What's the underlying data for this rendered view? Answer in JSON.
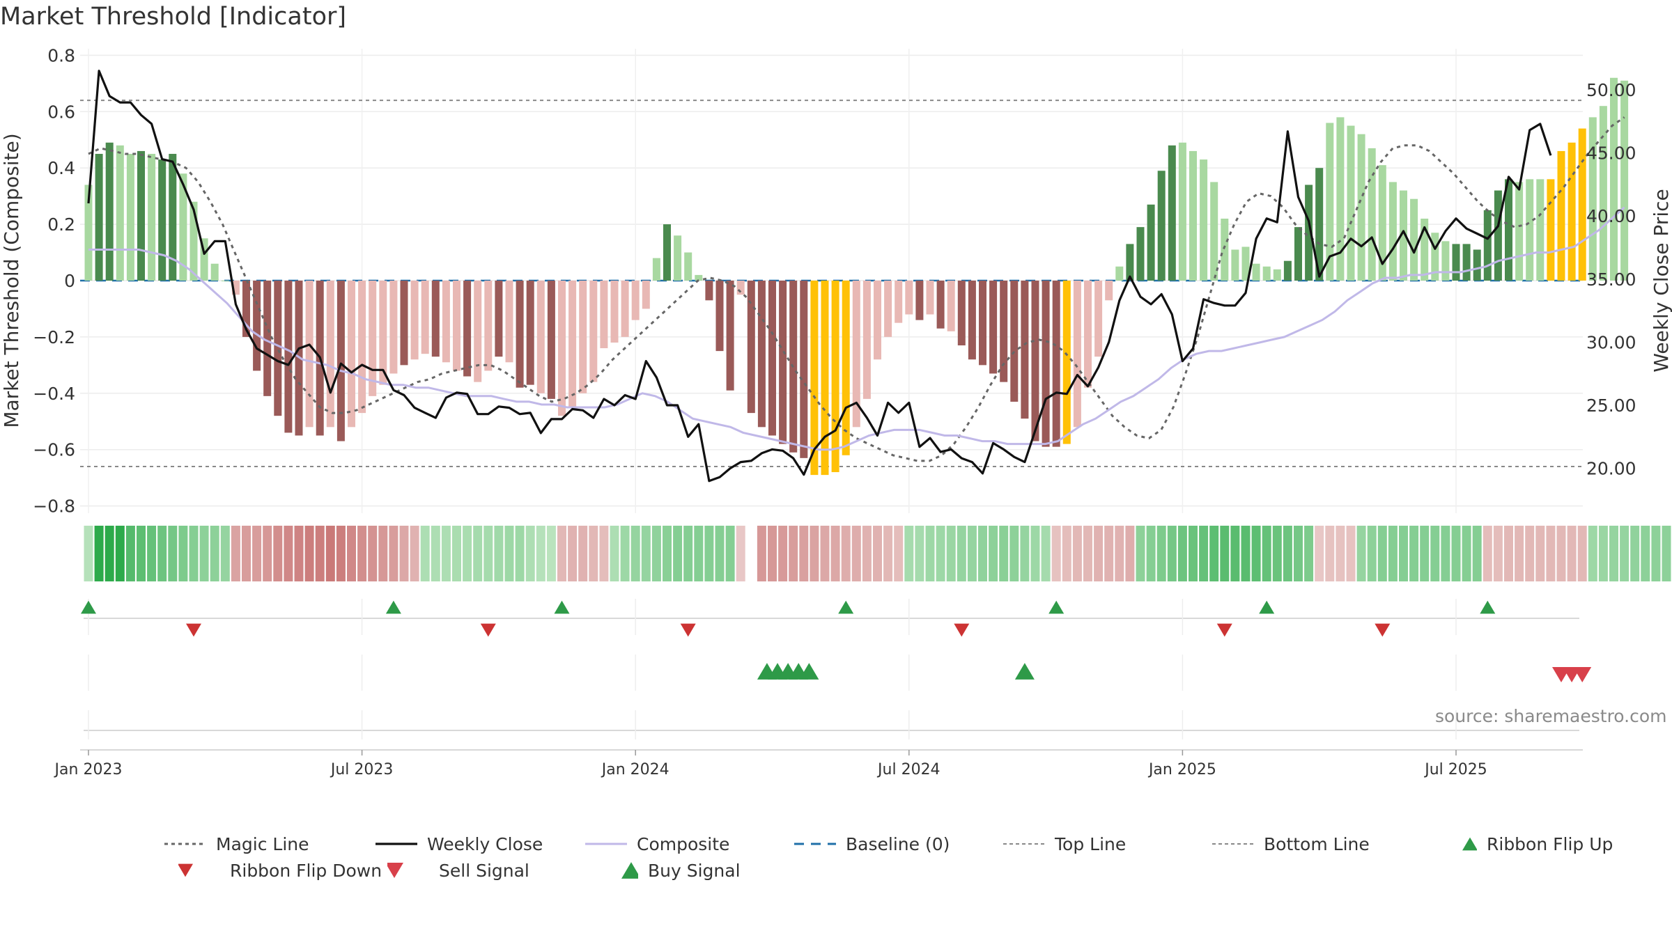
{
  "title": "Market Threshold [Indicator]",
  "source": "source: sharemaestro.com",
  "colors": {
    "pos_strong": "#4a8a4e",
    "pos_light": "#a8d8a0",
    "neg_strong": "#9a5a58",
    "neg_light": "#e8b8b4",
    "extreme": "#ffc107",
    "close": "#111111",
    "composite": "#c0b8e8",
    "magic": "#666666",
    "baseline": "#1f6fa8",
    "buy": "#2e9a48",
    "sell": "#d8404a"
  },
  "legend": [
    {
      "key": "magic",
      "label": "Magic Line"
    },
    {
      "key": "close",
      "label": "Weekly Close"
    },
    {
      "key": "composite",
      "label": "Composite"
    },
    {
      "key": "baseline",
      "label": "Baseline (0)"
    },
    {
      "key": "top",
      "label": "Top Line"
    },
    {
      "key": "bottom",
      "label": "Bottom Line"
    },
    {
      "key": "flipup",
      "label": "Ribbon Flip Up"
    },
    {
      "key": "flipdown",
      "label": "Ribbon Flip Down"
    },
    {
      "key": "sell",
      "label": "Sell Signal"
    },
    {
      "key": "buy",
      "label": "Buy Signal"
    }
  ],
  "chart_data": {
    "type": "bar",
    "title": "Market Threshold [Indicator]",
    "ylabel": "Market Threshold (Composite)",
    "y2label": "Weekly Close Price",
    "ylim": [
      -0.8,
      0.8
    ],
    "y2lim": [
      17.0,
      52.7
    ],
    "yticks": [
      "0.8",
      "0.6",
      "0.4",
      "0.2",
      "0",
      "−0.2",
      "−0.4",
      "−0.6",
      "−0.8"
    ],
    "yticks_values": [
      0.8,
      0.6,
      0.4,
      0.2,
      0,
      -0.2,
      -0.4,
      -0.6,
      -0.8
    ],
    "y2ticks": [
      "50.00",
      "45.00",
      "40.00",
      "35.00",
      "30.00",
      "25.00",
      "20.00"
    ],
    "y2ticks_values": [
      50,
      45,
      40,
      35,
      30,
      25,
      20
    ],
    "xticks": [
      "Jan 2023",
      "Jul 2023",
      "Jan 2024",
      "Jul 2024",
      "Jan 2025",
      "Jul 2025"
    ],
    "xticks_week": [
      0,
      26,
      52,
      78,
      104,
      130
    ],
    "top_line": 0.64,
    "bottom_line": -0.66,
    "baseline": 0,
    "composite_bars": [
      0.34,
      0.45,
      0.49,
      0.48,
      0.45,
      0.46,
      0.45,
      0.43,
      0.45,
      0.38,
      0.28,
      0.15,
      0.06,
      0.0,
      -0.05,
      -0.2,
      -0.32,
      -0.41,
      -0.48,
      -0.54,
      -0.55,
      -0.52,
      -0.55,
      -0.52,
      -0.57,
      -0.52,
      -0.47,
      -0.41,
      -0.37,
      -0.33,
      -0.3,
      -0.28,
      -0.26,
      -0.27,
      -0.29,
      -0.32,
      -0.34,
      -0.36,
      -0.32,
      -0.27,
      -0.29,
      -0.38,
      -0.37,
      -0.4,
      -0.42,
      -0.48,
      -0.45,
      -0.4,
      -0.36,
      -0.24,
      -0.22,
      -0.2,
      -0.14,
      -0.1,
      0.08,
      0.2,
      0.16,
      0.1,
      0.02,
      -0.07,
      -0.25,
      -0.39,
      -0.05,
      -0.47,
      -0.52,
      -0.55,
      -0.58,
      -0.61,
      -0.63,
      -0.69,
      -0.69,
      -0.68,
      -0.62,
      -0.52,
      -0.42,
      -0.28,
      -0.2,
      -0.15,
      -0.12,
      -0.14,
      -0.12,
      -0.17,
      -0.18,
      -0.23,
      -0.28,
      -0.3,
      -0.33,
      -0.36,
      -0.43,
      -0.49,
      -0.57,
      -0.59,
      -0.59,
      -0.58,
      -0.52,
      -0.38,
      -0.27,
      -0.07,
      0.05,
      0.13,
      0.19,
      0.27,
      0.39,
      0.48,
      0.49,
      0.46,
      0.43,
      0.35,
      0.22,
      0.11,
      0.12,
      0.06,
      0.05,
      0.04,
      0.07,
      0.19,
      0.34,
      0.4,
      0.56,
      0.58,
      0.55,
      0.52,
      0.47,
      0.41,
      0.35,
      0.32,
      0.29,
      0.22,
      0.17,
      0.14,
      0.13,
      0.13,
      0.11,
      0.25,
      0.32,
      0.36,
      0.35,
      0.36,
      0.36,
      0.36,
      0.46,
      0.49,
      0.54,
      0.58,
      0.62,
      0.72,
      0.71
    ],
    "bar_style": [
      "L",
      "S",
      "S",
      "L",
      "L",
      "S",
      "L",
      "S",
      "S",
      "L",
      "L",
      "L",
      "L",
      "L",
      "L",
      "S",
      "S",
      "S",
      "S",
      "S",
      "S",
      "L",
      "S",
      "L",
      "S",
      "L",
      "L",
      "L",
      "L",
      "L",
      "S",
      "L",
      "L",
      "S",
      "L",
      "L",
      "S",
      "L",
      "L",
      "S",
      "L",
      "S",
      "S",
      "L",
      "S",
      "L",
      "L",
      "L",
      "L",
      "L",
      "L",
      "L",
      "L",
      "L",
      "L",
      "S",
      "L",
      "L",
      "L",
      "S",
      "S",
      "S",
      "L",
      "S",
      "S",
      "S",
      "S",
      "S",
      "S",
      "E",
      "E",
      "E",
      "E",
      "L",
      "L",
      "L",
      "L",
      "L",
      "L",
      "S",
      "L",
      "S",
      "L",
      "S",
      "S",
      "S",
      "S",
      "S",
      "S",
      "S",
      "S",
      "S",
      "S",
      "E",
      "L",
      "L",
      "L",
      "L",
      "L",
      "S",
      "S",
      "S",
      "S",
      "S",
      "L",
      "L",
      "L",
      "L",
      "L",
      "L",
      "L",
      "L",
      "L",
      "L",
      "S",
      "S",
      "S",
      "S",
      "L",
      "L",
      "L",
      "L",
      "L",
      "L",
      "L",
      "L",
      "L",
      "L",
      "L",
      "L",
      "S",
      "S",
      "S",
      "S",
      "S",
      "S",
      "L",
      "L",
      "L",
      "E",
      "E",
      "E",
      "E"
    ],
    "magic_line": [
      0.45,
      0.47,
      0.46,
      0.45,
      0.45,
      0.44,
      0.43,
      0.42,
      0.4,
      0.35,
      0.28,
      0.2,
      0.1,
      0.0,
      -0.1,
      -0.2,
      -0.28,
      -0.35,
      -0.4,
      -0.45,
      -0.47,
      -0.47,
      -0.46,
      -0.44,
      -0.42,
      -0.4,
      -0.38,
      -0.36,
      -0.35,
      -0.33,
      -0.32,
      -0.31,
      -0.3,
      -0.3,
      -0.32,
      -0.35,
      -0.38,
      -0.41,
      -0.43,
      -0.42,
      -0.4,
      -0.37,
      -0.33,
      -0.28,
      -0.24,
      -0.2,
      -0.16,
      -0.12,
      -0.08,
      -0.04,
      0.0,
      0.01,
      0.0,
      -0.02,
      -0.06,
      -0.12,
      -0.18,
      -0.25,
      -0.32,
      -0.38,
      -0.44,
      -0.49,
      -0.53,
      -0.56,
      -0.58,
      -0.6,
      -0.62,
      -0.63,
      -0.64,
      -0.64,
      -0.62,
      -0.58,
      -0.52,
      -0.45,
      -0.37,
      -0.3,
      -0.25,
      -0.22,
      -0.21,
      -0.22,
      -0.25,
      -0.3,
      -0.36,
      -0.42,
      -0.48,
      -0.52,
      -0.55,
      -0.56,
      -0.53,
      -0.45,
      -0.33,
      -0.2,
      -0.05,
      0.1,
      0.2,
      0.28,
      0.31,
      0.3,
      0.26,
      0.2,
      0.16,
      0.13,
      0.12,
      0.15,
      0.25,
      0.35,
      0.42,
      0.47,
      0.48,
      0.48,
      0.46,
      0.42,
      0.38,
      0.33,
      0.28,
      0.24,
      0.21,
      0.19,
      0.2,
      0.23,
      0.28,
      0.33,
      0.39,
      0.45,
      0.5,
      0.55,
      0.58
    ],
    "composite_line": [
      0.11,
      0.11,
      0.11,
      0.11,
      0.11,
      0.1,
      0.09,
      0.07,
      0.04,
      0.0,
      -0.04,
      -0.08,
      -0.13,
      -0.18,
      -0.21,
      -0.23,
      -0.25,
      -0.28,
      -0.29,
      -0.3,
      -0.32,
      -0.33,
      -0.35,
      -0.36,
      -0.37,
      -0.37,
      -0.38,
      -0.38,
      -0.39,
      -0.4,
      -0.41,
      -0.41,
      -0.41,
      -0.42,
      -0.43,
      -0.43,
      -0.44,
      -0.44,
      -0.45,
      -0.45,
      -0.45,
      -0.45,
      -0.44,
      -0.42,
      -0.4,
      -0.41,
      -0.43,
      -0.46,
      -0.49,
      -0.5,
      -0.51,
      -0.52,
      -0.54,
      -0.55,
      -0.56,
      -0.57,
      -0.58,
      -0.59,
      -0.6,
      -0.6,
      -0.59,
      -0.57,
      -0.55,
      -0.54,
      -0.53,
      -0.53,
      -0.53,
      -0.54,
      -0.55,
      -0.55,
      -0.56,
      -0.57,
      -0.57,
      -0.58,
      -0.58,
      -0.58,
      -0.58,
      -0.57,
      -0.54,
      -0.51,
      -0.49,
      -0.46,
      -0.43,
      -0.41,
      -0.38,
      -0.35,
      -0.31,
      -0.28,
      -0.26,
      -0.25,
      -0.25,
      -0.24,
      -0.23,
      -0.22,
      -0.21,
      -0.2,
      -0.18,
      -0.16,
      -0.14,
      -0.11,
      -0.07,
      -0.04,
      -0.01,
      0.01,
      0.01,
      0.02,
      0.02,
      0.03,
      0.03,
      0.03,
      0.04,
      0.05,
      0.07,
      0.08,
      0.09,
      0.1,
      0.1,
      0.11,
      0.12,
      0.15,
      0.18,
      0.22,
      0.26
    ],
    "weekly_close": [
      41,
      51.5,
      49.5,
      49,
      49,
      48,
      47.3,
      44.5,
      44.3,
      42.5,
      40.5,
      37,
      38,
      38,
      33,
      31,
      29.5,
      29,
      28.5,
      28.2,
      29.5,
      29.8,
      28.8,
      26,
      28.3,
      27.6,
      28.2,
      27.8,
      27.8,
      26.2,
      25.8,
      24.8,
      24.4,
      24,
      25.6,
      26,
      25.9,
      24.3,
      24.3,
      24.9,
      24.8,
      24.3,
      24.4,
      22.8,
      23.9,
      23.9,
      24.7,
      24.6,
      24,
      25.5,
      25,
      25.8,
      25.5,
      28.5,
      27.2,
      25,
      25,
      22.5,
      23.5,
      19,
      19.3,
      20,
      20.5,
      20.6,
      21.2,
      21.5,
      21.4,
      20.8,
      19.5,
      21.5,
      22.5,
      23,
      24.8,
      25.2,
      24,
      22.6,
      25.2,
      24.4,
      25.2,
      21.7,
      22.4,
      21.3,
      21.5,
      20.8,
      20.5,
      19.6,
      22,
      21.5,
      20.9,
      20.5,
      23,
      25.5,
      26,
      25.9,
      27.4,
      26.5,
      28,
      30,
      33.3,
      35.2,
      33.6,
      33,
      33.8,
      32.2,
      28.5,
      29.5,
      33.4,
      33.1,
      32.9,
      32.9,
      33.9,
      38.2,
      39.8,
      39.5,
      46.7,
      41.5,
      39.6,
      35.2,
      36.8,
      37.1,
      38.2,
      37.6,
      38.3,
      36.2,
      37.4,
      38.8,
      37.1,
      39.1,
      37.4,
      38.8,
      39.8,
      39,
      38.6,
      38.2,
      39.2,
      43.1,
      42.1,
      46.8,
      47.3,
      44.8
    ],
    "ribbon": [
      0.15,
      1,
      1,
      1,
      0.75,
      0.7,
      0.65,
      0.6,
      0.55,
      0.5,
      0.45,
      0.4,
      0.4,
      0.35,
      -0.5,
      -0.55,
      -0.55,
      -0.6,
      -0.7,
      -0.75,
      -0.8,
      -0.85,
      -0.85,
      -0.9,
      -0.85,
      -0.75,
      -0.7,
      -0.65,
      -0.6,
      -0.55,
      -0.45,
      -0.35,
      0.2,
      0.2,
      0.2,
      0.22,
      0.22,
      0.25,
      0.25,
      0.28,
      0.3,
      0.3,
      0.2,
      0.15,
      0.12,
      -0.3,
      -0.35,
      -0.35,
      -0.3,
      -0.25,
      0.2,
      0.3,
      0.35,
      0.35,
      0.38,
      0.42,
      0.45,
      0.45,
      0.45,
      0.45,
      0.45,
      0.45,
      -0.15,
      null,
      -0.6,
      -0.6,
      -0.58,
      -0.55,
      -0.52,
      -0.5,
      -0.45,
      -0.45,
      -0.4,
      -0.4,
      -0.35,
      -0.35,
      -0.3,
      -0.25,
      0.25,
      0.25,
      0.3,
      0.3,
      0.32,
      0.35,
      0.35,
      0.38,
      0.4,
      0.42,
      0.4,
      0.35,
      0.3,
      0.25,
      -0.2,
      -0.25,
      -0.3,
      -0.3,
      -0.35,
      -0.35,
      -0.35,
      -0.4,
      0.4,
      0.45,
      0.5,
      0.55,
      0.6,
      0.62,
      0.65,
      0.7,
      0.72,
      0.72,
      0.72,
      0.7,
      0.65,
      0.62,
      0.6,
      0.55,
      0.5,
      -0.15,
      -0.2,
      -0.2,
      -0.2,
      0.35,
      0.4,
      0.45,
      0.45,
      0.45,
      0.45,
      0.45,
      0.45,
      0.45,
      0.45,
      0.45,
      0.45,
      -0.25,
      -0.25,
      -0.3,
      -0.3,
      -0.3,
      -0.3,
      -0.3,
      -0.3,
      -0.3,
      -0.3,
      0.3,
      0.32,
      0.35,
      0.35,
      0.38,
      0.4,
      0.4,
      0.4,
      0.42,
      0.42,
      0.45
    ],
    "ribbon_flip_up": [
      0,
      29,
      45,
      72,
      92,
      112,
      133
    ],
    "ribbon_flip_down": [
      10,
      38,
      57,
      83,
      108,
      123
    ],
    "buy_signals": [
      64.5,
      65.5,
      66.5,
      67.5,
      68.5,
      89
    ],
    "sell_signals": [
      140,
      141,
      142
    ]
  }
}
